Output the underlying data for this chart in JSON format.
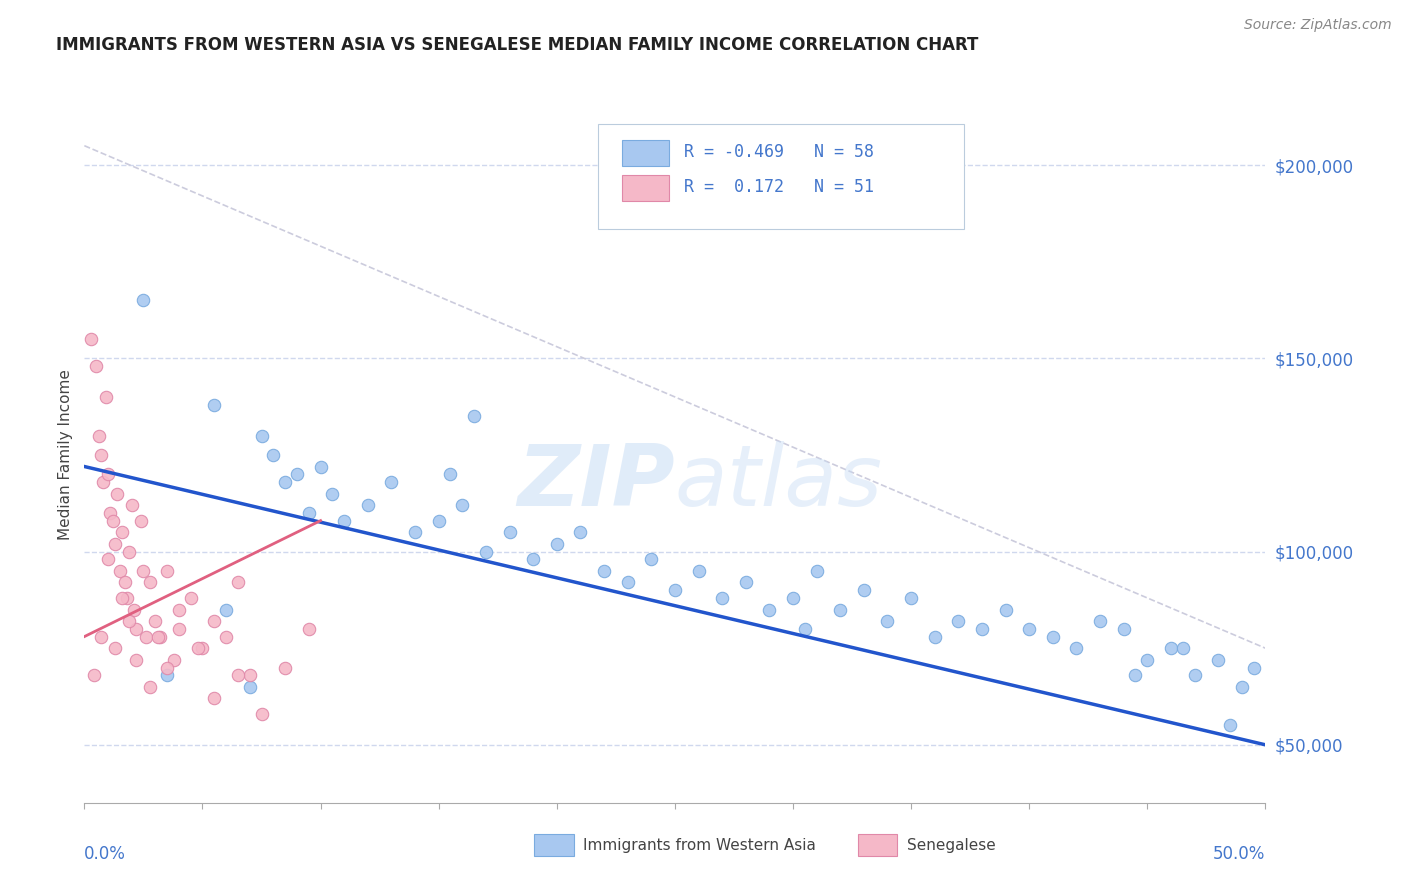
{
  "title": "IMMIGRANTS FROM WESTERN ASIA VS SENEGALESE MEDIAN FAMILY INCOME CORRELATION CHART",
  "source_text": "Source: ZipAtlas.com",
  "ylabel": "Median Family Income",
  "xlim": [
    0.0,
    50.0
  ],
  "ylim": [
    35000,
    215000
  ],
  "yticks": [
    50000,
    100000,
    150000,
    200000
  ],
  "ytick_labels": [
    "$50,000",
    "$100,000",
    "$150,000",
    "$200,000"
  ],
  "watermark": "ZIPatlas",
  "color_blue": "#a8c8f0",
  "color_blue_edge": "#7aabdf",
  "color_pink": "#f5b8c8",
  "color_pink_edge": "#e088a8",
  "color_trend_blue": "#2255cc",
  "color_trend_pink": "#e06080",
  "color_text_blue": "#4477cc",
  "color_diag": "#ccccdd",
  "background": "#ffffff",
  "grid_color": "#d0d8ee",
  "blue_trend_x0": 0.0,
  "blue_trend_y0": 122000,
  "blue_trend_x1": 50.0,
  "blue_trend_y1": 50000,
  "pink_trend_x0": 0.0,
  "pink_trend_y0": 78000,
  "pink_trend_x1": 10.0,
  "pink_trend_y1": 108000,
  "diag_x0": 0.0,
  "diag_y0": 205000,
  "diag_x1": 50.0,
  "diag_y1": 75000,
  "blue_scatter_x": [
    2.5,
    5.5,
    7.5,
    8.0,
    8.5,
    9.0,
    9.5,
    10.0,
    10.5,
    11.0,
    12.0,
    13.0,
    14.0,
    15.0,
    15.5,
    16.0,
    17.0,
    18.0,
    19.0,
    20.0,
    21.0,
    22.0,
    23.0,
    24.0,
    25.0,
    26.0,
    27.0,
    28.0,
    29.0,
    30.0,
    31.0,
    32.0,
    33.0,
    34.0,
    35.0,
    36.0,
    37.0,
    38.0,
    39.0,
    40.0,
    41.0,
    42.0,
    43.0,
    44.0,
    45.0,
    46.0,
    47.0,
    48.0,
    49.0,
    49.5,
    3.5,
    6.0,
    7.0,
    16.5,
    30.5,
    44.5,
    46.5,
    48.5
  ],
  "blue_scatter_y": [
    165000,
    138000,
    130000,
    125000,
    118000,
    120000,
    110000,
    122000,
    115000,
    108000,
    112000,
    118000,
    105000,
    108000,
    120000,
    112000,
    100000,
    105000,
    98000,
    102000,
    105000,
    95000,
    92000,
    98000,
    90000,
    95000,
    88000,
    92000,
    85000,
    88000,
    95000,
    85000,
    90000,
    82000,
    88000,
    78000,
    82000,
    80000,
    85000,
    80000,
    78000,
    75000,
    82000,
    80000,
    72000,
    75000,
    68000,
    72000,
    65000,
    70000,
    68000,
    85000,
    65000,
    135000,
    80000,
    68000,
    75000,
    55000
  ],
  "pink_scatter_x": [
    0.3,
    0.5,
    0.6,
    0.7,
    0.8,
    0.9,
    1.0,
    1.1,
    1.2,
    1.3,
    1.4,
    1.5,
    1.6,
    1.7,
    1.8,
    1.9,
    2.0,
    2.1,
    2.2,
    2.4,
    2.6,
    2.8,
    3.0,
    3.2,
    3.5,
    3.8,
    4.0,
    4.5,
    5.0,
    5.5,
    6.0,
    6.5,
    7.0,
    0.4,
    0.7,
    1.0,
    1.3,
    1.6,
    1.9,
    2.2,
    2.5,
    2.8,
    3.1,
    3.5,
    4.0,
    4.8,
    5.5,
    6.5,
    7.5,
    8.5,
    9.5
  ],
  "pink_scatter_y": [
    155000,
    148000,
    130000,
    125000,
    118000,
    140000,
    120000,
    110000,
    108000,
    102000,
    115000,
    95000,
    105000,
    92000,
    88000,
    100000,
    112000,
    85000,
    80000,
    108000,
    78000,
    92000,
    82000,
    78000,
    95000,
    72000,
    85000,
    88000,
    75000,
    82000,
    78000,
    92000,
    68000,
    68000,
    78000,
    98000,
    75000,
    88000,
    82000,
    72000,
    95000,
    65000,
    78000,
    70000,
    80000,
    75000,
    62000,
    68000,
    58000,
    70000,
    80000
  ]
}
